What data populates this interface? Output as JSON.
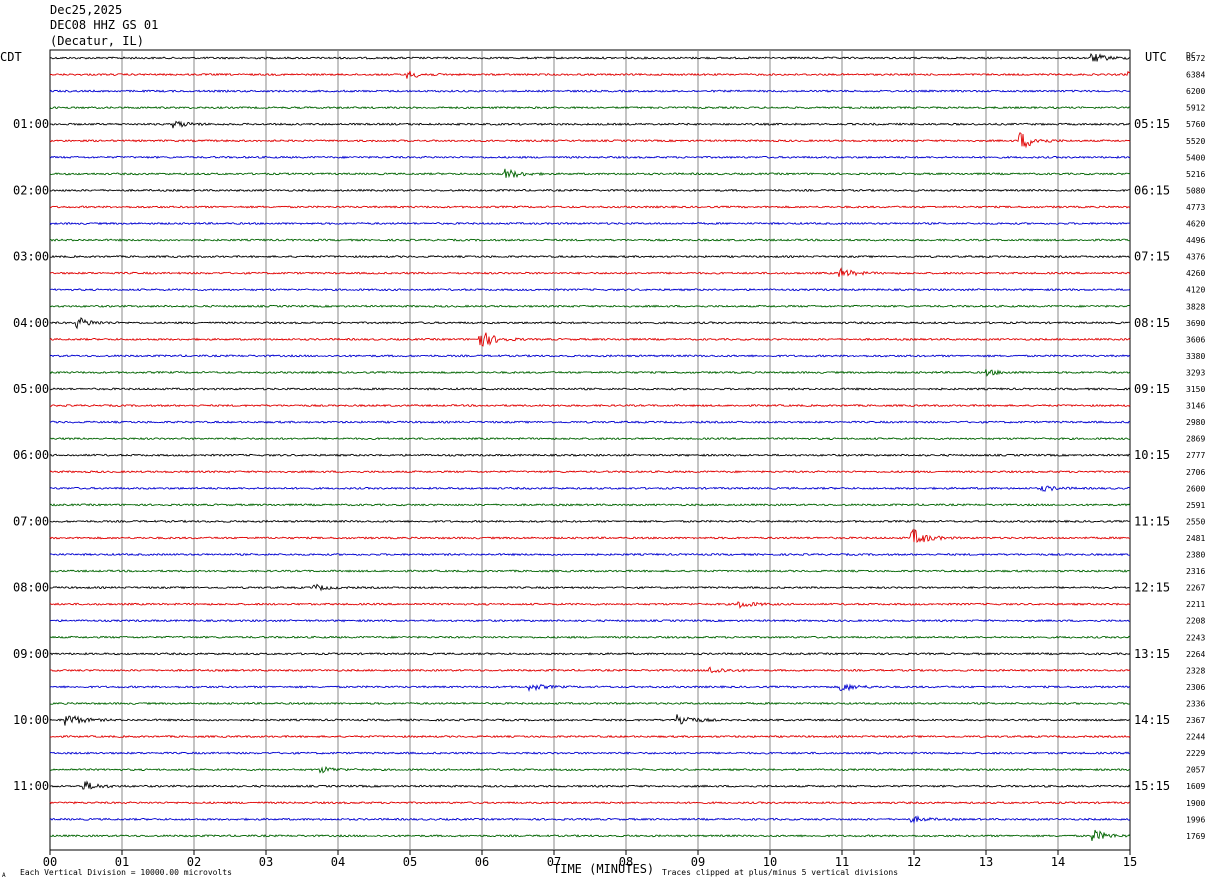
{
  "header": {
    "date": "Dec25,2025",
    "station": "DEC08 HHZ GS 01",
    "location": "(Decatur, IL)"
  },
  "left_timezone": "CDT",
  "right_timezone": "UTC",
  "dc_header": "DC",
  "footer": {
    "scale_note": "Each Vertical Division = 10000.00 microvolts",
    "clip_note": "Traces clipped at plus/minus 5 vertical divisions",
    "corner_mark": "A"
  },
  "colors": {
    "cycle": [
      "#000000",
      "#e00000",
      "#0000d0",
      "#006400"
    ],
    "grid": "#888888"
  },
  "chart_data": {
    "type": "line",
    "title": "DEC08 HHZ GS 01",
    "xlabel": "TIME (MINUTES)",
    "xlim": [
      0,
      15
    ],
    "x_ticks": [
      "00",
      "01",
      "02",
      "03",
      "04",
      "05",
      "06",
      "07",
      "08",
      "09",
      "10",
      "11",
      "12",
      "13",
      "14",
      "15"
    ],
    "left_hour_labels": [
      "01:00",
      "02:00",
      "03:00",
      "04:00",
      "05:00",
      "06:00",
      "07:00",
      "08:00",
      "09:00",
      "10:00",
      "11:00"
    ],
    "right_hour_labels": [
      "05:15",
      "06:15",
      "07:15",
      "08:15",
      "09:15",
      "10:15",
      "11:15",
      "12:15",
      "13:15",
      "14:15",
      "15:15"
    ],
    "dc_offsets": [
      "6572",
      "6384",
      "6200",
      "5912",
      "5760",
      "5520",
      "5400",
      "5216",
      "5080",
      "4773",
      "4620",
      "4496",
      "4376",
      "4260",
      "4120",
      "3828",
      "3690",
      "3606",
      "3380",
      "3293",
      "3150",
      "3146",
      "2980",
      "2869",
      "2777",
      "2706",
      "2600",
      "2591",
      "2550",
      "2481",
      "2380",
      "2316",
      "2267",
      "2211",
      "2208",
      "2243",
      "2264",
      "2328",
      "2306",
      "2336",
      "2367",
      "2244",
      "2229",
      "2057",
      "1609",
      "1900",
      "1996",
      "1769"
    ],
    "traces_per_hour": 4,
    "trace_count": 48,
    "events": [
      {
        "trace": 0,
        "minute": 14.5,
        "amp": 0.5
      },
      {
        "trace": 1,
        "minute": 5.0,
        "amp": 0.4
      },
      {
        "trace": 1,
        "minute": 15.0,
        "amp": 0.5
      },
      {
        "trace": 4,
        "minute": 1.75,
        "amp": 0.4
      },
      {
        "trace": 5,
        "minute": 13.5,
        "amp": 1.0
      },
      {
        "trace": 7,
        "minute": 6.35,
        "amp": 0.6
      },
      {
        "trace": 13,
        "minute": 11.0,
        "amp": 0.5
      },
      {
        "trace": 16,
        "minute": 0.4,
        "amp": 0.6
      },
      {
        "trace": 17,
        "minute": 6.0,
        "amp": 1.0
      },
      {
        "trace": 19,
        "minute": 13.0,
        "amp": 0.35
      },
      {
        "trace": 26,
        "minute": 13.8,
        "amp": 0.3
      },
      {
        "trace": 29,
        "minute": 12.0,
        "amp": 1.0
      },
      {
        "trace": 32,
        "minute": 3.7,
        "amp": 0.3
      },
      {
        "trace": 33,
        "minute": 9.6,
        "amp": 0.4
      },
      {
        "trace": 37,
        "minute": 9.2,
        "amp": 0.4
      },
      {
        "trace": 38,
        "minute": 6.7,
        "amp": 0.35
      },
      {
        "trace": 38,
        "minute": 11.0,
        "amp": 0.5
      },
      {
        "trace": 40,
        "minute": 0.25,
        "amp": 0.8
      },
      {
        "trace": 40,
        "minute": 8.75,
        "amp": 0.7
      },
      {
        "trace": 43,
        "minute": 3.8,
        "amp": 0.3
      },
      {
        "trace": 44,
        "minute": 0.5,
        "amp": 0.5
      },
      {
        "trace": 46,
        "minute": 12.0,
        "amp": 0.3
      },
      {
        "trace": 47,
        "minute": 14.5,
        "amp": 0.7
      }
    ]
  }
}
